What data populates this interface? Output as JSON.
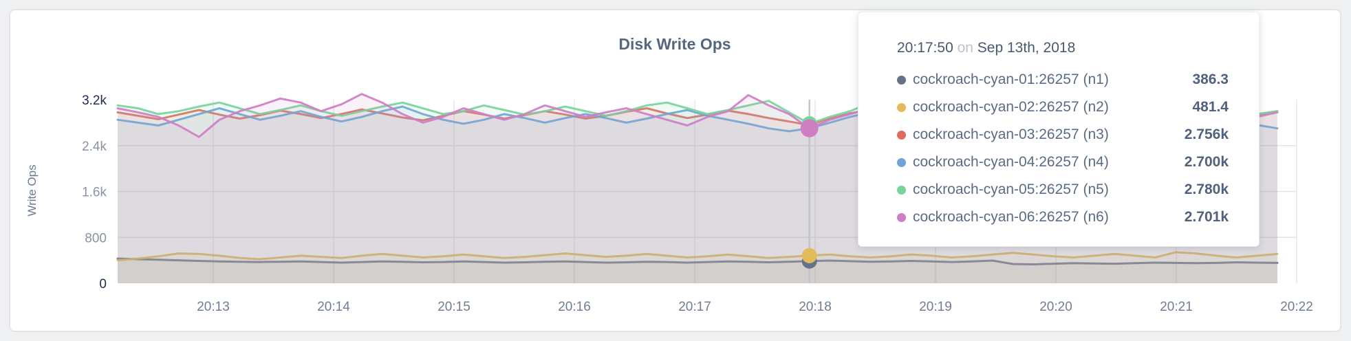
{
  "panel": {
    "title": "Disk Write Ops",
    "y_axis_title": "Write Ops"
  },
  "tooltip": {
    "time": "20:17:50",
    "on": "on",
    "date": "Sep 13th, 2018",
    "rows": [
      {
        "label": "cockroach-cyan-01:26257 (n1)",
        "value": "386.3",
        "color": "#66718b"
      },
      {
        "label": "cockroach-cyan-02:26257 (n2)",
        "value": "481.4",
        "color": "#e3bb58"
      },
      {
        "label": "cockroach-cyan-03:26257 (n3)",
        "value": "2.756k",
        "color": "#e06c5f"
      },
      {
        "label": "cockroach-cyan-04:26257 (n4)",
        "value": "2.700k",
        "color": "#6fa3d9"
      },
      {
        "label": "cockroach-cyan-05:26257 (n5)",
        "value": "2.780k",
        "color": "#78d49c"
      },
      {
        "label": "cockroach-cyan-06:26257 (n6)",
        "value": "2.701k",
        "color": "#cf7ec4"
      }
    ]
  },
  "chart_data": {
    "type": "area",
    "title": "Disk Write Ops",
    "xlabel": "",
    "ylabel": "Write Ops",
    "ylim": [
      0,
      3200
    ],
    "grid": true,
    "legend_position": "tooltip",
    "sample_interval_seconds": 10,
    "hover_index": 34,
    "hover_time": "20:17:50",
    "x_ticks": [
      "20:13",
      "20:14",
      "20:15",
      "20:16",
      "20:17",
      "20:18",
      "20:19",
      "20:20",
      "20:21",
      "20:22"
    ],
    "y_ticks": [
      {
        "label": "3.2k",
        "value": 3200,
        "emphasis": true,
        "gridline": false
      },
      {
        "label": "2.4k",
        "value": 2400,
        "emphasis": false,
        "gridline": true
      },
      {
        "label": "1.6k",
        "value": 1600,
        "emphasis": false,
        "gridline": true
      },
      {
        "label": "800",
        "value": 800,
        "emphasis": false,
        "gridline": true
      },
      {
        "label": "0",
        "value": 0,
        "emphasis": true,
        "gridline": false
      }
    ],
    "series": [
      {
        "name": "cockroach-cyan-01:26257 (n1)",
        "color": "#66718b",
        "hover_value": 386.3,
        "values": [
          430,
          420,
          410,
          400,
          390,
          380,
          375,
          370,
          375,
          380,
          370,
          360,
          370,
          380,
          375,
          365,
          370,
          380,
          370,
          360,
          365,
          375,
          380,
          370,
          360,
          365,
          375,
          370,
          360,
          370,
          380,
          375,
          365,
          375,
          386.3,
          395,
          385,
          375,
          380,
          390,
          380,
          370,
          380,
          395,
          335,
          330,
          340,
          350,
          345,
          340,
          350,
          360,
          355,
          350,
          355,
          365,
          360,
          355
        ]
      },
      {
        "name": "cockroach-cyan-02:26257 (n2)",
        "color": "#e3bb58",
        "hover_value": 481.4,
        "values": [
          400,
          430,
          470,
          520,
          510,
          480,
          440,
          420,
          450,
          480,
          460,
          440,
          480,
          510,
          480,
          450,
          470,
          500,
          470,
          440,
          460,
          490,
          520,
          490,
          460,
          480,
          510,
          480,
          450,
          470,
          500,
          470,
          440,
          460,
          481.4,
          500,
          470,
          450,
          470,
          500,
          480,
          450,
          470,
          500,
          530,
          500,
          470,
          450,
          480,
          510,
          480,
          450,
          540,
          520,
          480,
          450,
          480,
          510
        ]
      },
      {
        "name": "cockroach-cyan-03:26257 (n3)",
        "color": "#e06c5f",
        "hover_value": 2756,
        "values": [
          2980,
          2920,
          2860,
          2940,
          3020,
          2940,
          2870,
          2930,
          3010,
          2950,
          2880,
          2950,
          3030,
          2960,
          2890,
          2840,
          2920,
          3000,
          2940,
          2870,
          2930,
          3000,
          2940,
          2870,
          2920,
          2990,
          3050,
          2960,
          2880,
          2940,
          3010,
          2950,
          2880,
          2820,
          2756,
          2880,
          2960,
          3030,
          2950,
          2870,
          2930,
          3000,
          2930,
          2870,
          2940,
          3010,
          2950,
          2880,
          2940,
          3000,
          2940,
          2880,
          2940,
          3010,
          2950,
          2890,
          2940,
          3000
        ]
      },
      {
        "name": "cockroach-cyan-04:26257 (n4)",
        "color": "#6fa3d9",
        "hover_value": 2700,
        "values": [
          2850,
          2800,
          2750,
          2850,
          2950,
          3050,
          2950,
          2850,
          2920,
          3000,
          2900,
          2820,
          2900,
          3000,
          3080,
          2950,
          2850,
          2780,
          2850,
          2950,
          2880,
          2800,
          2880,
          2950,
          2880,
          2800,
          2870,
          2950,
          3020,
          2920,
          2850,
          2780,
          2700,
          2650,
          2700,
          2800,
          2900,
          2980,
          2900,
          2820,
          2900,
          2970,
          2900,
          2830,
          2900,
          2980,
          2900,
          2820,
          2900,
          2960,
          2890,
          2820,
          2890,
          2960,
          2900,
          2830,
          2760,
          2700
        ]
      },
      {
        "name": "cockroach-cyan-05:26257 (n5)",
        "color": "#78d49c",
        "hover_value": 2780,
        "values": [
          3100,
          3050,
          2950,
          3000,
          3080,
          3150,
          3050,
          2950,
          3020,
          3100,
          3000,
          2920,
          3000,
          3080,
          3150,
          3050,
          2950,
          3000,
          3100,
          3020,
          2940,
          3000,
          3080,
          3000,
          2920,
          3000,
          3100,
          3150,
          3050,
          2950,
          3020,
          3100,
          3180,
          2980,
          2780,
          2900,
          3000,
          3150,
          3250,
          3100,
          2980,
          3050,
          3120,
          3000,
          2920,
          3000,
          3080,
          3000,
          2920,
          2980,
          3050,
          3000,
          2930,
          3000,
          3080,
          3020,
          2950,
          3000
        ]
      },
      {
        "name": "cockroach-cyan-06:26257 (n6)",
        "color": "#cf7ec4",
        "hover_value": 2701,
        "values": [
          3050,
          2980,
          2900,
          2750,
          2550,
          2850,
          3000,
          3100,
          3220,
          3150,
          3000,
          3120,
          3300,
          3150,
          2950,
          2800,
          2900,
          3050,
          2950,
          2850,
          2950,
          3100,
          3000,
          2900,
          2980,
          3050,
          2950,
          2850,
          2750,
          2900,
          3000,
          3280,
          3100,
          2950,
          2701,
          2850,
          2950,
          3050,
          2950,
          2880,
          2950,
          3020,
          3330,
          3100,
          2900,
          2800,
          2900,
          2980,
          2850,
          2750,
          2850,
          2950,
          3050,
          2950,
          2850,
          2750,
          2900,
          2980
        ]
      }
    ]
  }
}
